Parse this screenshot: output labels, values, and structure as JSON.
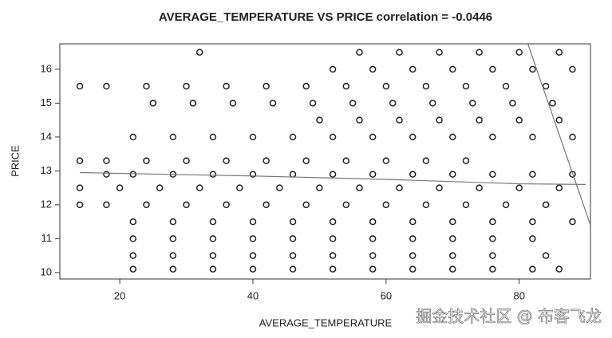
{
  "chart_data": {
    "type": "scatter",
    "title": "AVERAGE_TEMPERATURE VS PRICE correlation = -0.0446",
    "x_label": "AVERAGE_TEMPERATURE",
    "y_label": "PRICE",
    "watermark": "掘金技术社区 @ 布客飞龙",
    "xlim": [
      11,
      90.7
    ],
    "ylim": [
      9.81,
      16.75
    ],
    "xticks": [
      20,
      40,
      60,
      80
    ],
    "yticks": [
      10,
      11,
      12,
      13,
      14,
      15,
      16
    ],
    "grid": false,
    "color": "#222222",
    "x": [
      32,
      56,
      62,
      68,
      74,
      80,
      86,
      52,
      58,
      64,
      70,
      76,
      82,
      88,
      14,
      18,
      24,
      30,
      36,
      42,
      48,
      54,
      60,
      66,
      72,
      78,
      84,
      25,
      31,
      37,
      43,
      49,
      55,
      61,
      67,
      73,
      79,
      85,
      50,
      56,
      62,
      68,
      74,
      80,
      86,
      22,
      28,
      34,
      40,
      46,
      52,
      58,
      64,
      70,
      76,
      82,
      88,
      14,
      18,
      24,
      30,
      36,
      42,
      48,
      54,
      60,
      66,
      72,
      18,
      22,
      28,
      34,
      40,
      46,
      52,
      58,
      64,
      70,
      76,
      82,
      88,
      14,
      20,
      26,
      32,
      38,
      44,
      50,
      56,
      62,
      68,
      74,
      80,
      86,
      14,
      18,
      24,
      30,
      36,
      42,
      48,
      54,
      60,
      66,
      72,
      78,
      84,
      22,
      28,
      34,
      40,
      46,
      52,
      58,
      64,
      70,
      76,
      82,
      88,
      22,
      28,
      34,
      40,
      46,
      52,
      58,
      64,
      70,
      76,
      82,
      22,
      28,
      34,
      40,
      46,
      52,
      58,
      64,
      70,
      76,
      84,
      22,
      28,
      34,
      40,
      46,
      52,
      58,
      64,
      70,
      76,
      82,
      86
    ],
    "y": [
      16.5,
      16.5,
      16.5,
      16.5,
      16.5,
      16.5,
      16.5,
      16,
      16,
      16,
      16,
      16,
      16,
      16,
      15.5,
      15.5,
      15.5,
      15.5,
      15.5,
      15.5,
      15.5,
      15.5,
      15.5,
      15.5,
      15.5,
      15.5,
      15.5,
      15,
      15,
      15,
      15,
      15,
      15,
      15,
      15,
      15,
      15,
      15,
      14.5,
      14.5,
      14.5,
      14.5,
      14.5,
      14.5,
      14.5,
      14,
      14,
      14,
      14,
      14,
      14,
      14,
      14,
      14,
      14,
      14,
      14,
      13.3,
      13.3,
      13.3,
      13.3,
      13.3,
      13.3,
      13.3,
      13.3,
      13.3,
      13.3,
      13.3,
      12.9,
      12.9,
      12.9,
      12.9,
      12.9,
      12.9,
      12.9,
      12.9,
      12.9,
      12.9,
      12.9,
      12.9,
      12.9,
      12.5,
      12.5,
      12.5,
      12.5,
      12.5,
      12.5,
      12.5,
      12.5,
      12.5,
      12.5,
      12.5,
      12.5,
      12.5,
      12,
      12,
      12,
      12,
      12,
      12,
      12,
      12,
      12,
      12,
      12,
      12,
      12,
      11.5,
      11.5,
      11.5,
      11.5,
      11.5,
      11.5,
      11.5,
      11.5,
      11.5,
      11.5,
      11.5,
      11.5,
      11,
      11,
      11,
      11,
      11,
      11,
      11,
      11,
      11,
      11,
      11,
      10.5,
      10.5,
      10.5,
      10.5,
      10.5,
      10.5,
      10.5,
      10.5,
      10.5,
      10.5,
      10.5,
      10.1,
      10.1,
      10.1,
      10.1,
      10.1,
      10.1,
      10.1,
      10.1,
      10.1,
      10.1,
      10.1,
      10.1
    ],
    "lines": [
      {
        "color": "#777777",
        "x": [
          14,
          40,
          60,
          80,
          90
        ],
        "y": [
          12.95,
          12.85,
          12.75,
          12.62,
          12.6
        ]
      },
      {
        "color": "#777777",
        "x": [
          81.3,
          90.7
        ],
        "y": [
          16.75,
          11.4
        ]
      }
    ]
  }
}
